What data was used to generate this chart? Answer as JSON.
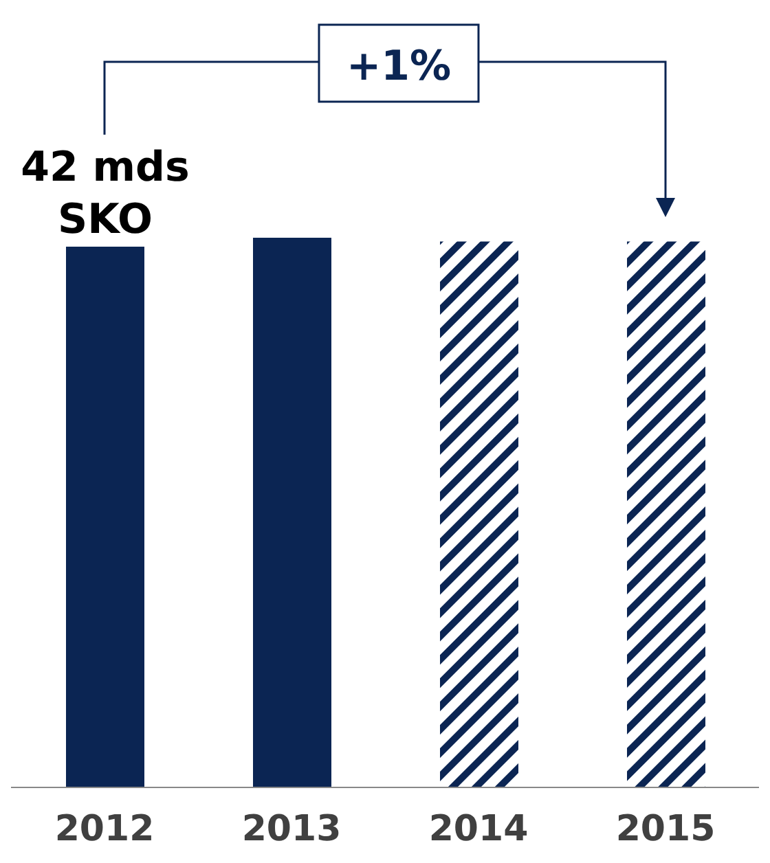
{
  "chart_data": {
    "type": "bar",
    "categories": [
      "2012",
      "2013",
      "2014",
      "2015"
    ],
    "stacked": true,
    "series": [
      {
        "color": "#0b2553",
        "values": [
          42,
          42.7,
          null,
          null
        ],
        "value_labels": [
          "42 mds SKO",
          null,
          null,
          null
        ]
      },
      {
        "color": "#0b2553",
        "values": [
          null,
          null,
          42.4,
          42.4
        ]
      }
    ],
    "annotations": [
      "+1%"
    ]
  }
}
